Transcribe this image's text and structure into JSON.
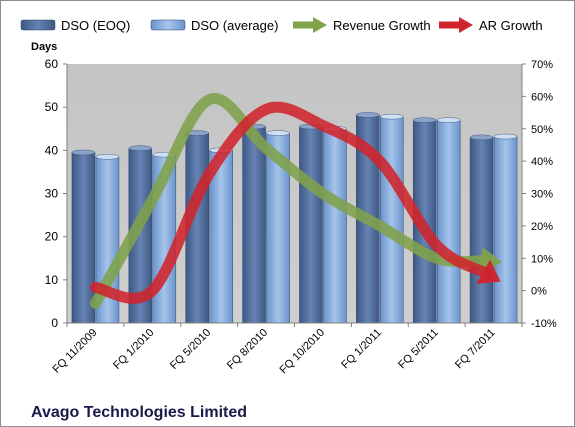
{
  "chart_data": {
    "type": "bar",
    "title": "",
    "company": "Avago Technologies Limited",
    "y_left_label": "Days",
    "y_left_lim": [
      0,
      60
    ],
    "y_left_ticks": [
      "0",
      "10",
      "20",
      "30",
      "40",
      "50",
      "60"
    ],
    "y_right_lim": [
      -10,
      70
    ],
    "y_right_ticks": [
      "-10%",
      "0%",
      "10%",
      "20%",
      "30%",
      "40%",
      "50%",
      "60%",
      "70%"
    ],
    "grid": false,
    "legend_position": "top",
    "categories": [
      "FQ 11/2009",
      "FQ 1/2010",
      "FQ 5/2010",
      "FQ 8/2010",
      "FQ 10/2010",
      "FQ 1/2011",
      "FQ 5/2011",
      "FQ 7/2011"
    ],
    "series": [
      {
        "name": "DSO (EOQ)",
        "kind": "bar",
        "axis": "left",
        "color": "#4f6b99",
        "values": [
          39.5,
          40.5,
          44,
          45.5,
          45.5,
          48.2,
          47,
          43
        ]
      },
      {
        "name": "DSO (average)",
        "kind": "bar",
        "axis": "left",
        "color": "#7ea3d6",
        "values": [
          38.5,
          39,
          40,
          44,
          45,
          47.8,
          47,
          43.2
        ]
      },
      {
        "name": "Revenue Growth",
        "kind": "arrow-line",
        "axis": "right",
        "color": "#7fa24a",
        "values": [
          -4,
          28,
          59,
          44,
          30,
          20,
          10,
          9
        ]
      },
      {
        "name": "AR Growth",
        "kind": "arrow-line",
        "axis": "right",
        "color": "#d0242b",
        "values": [
          1,
          0,
          36,
          56,
          51,
          40,
          14,
          4
        ]
      }
    ]
  }
}
